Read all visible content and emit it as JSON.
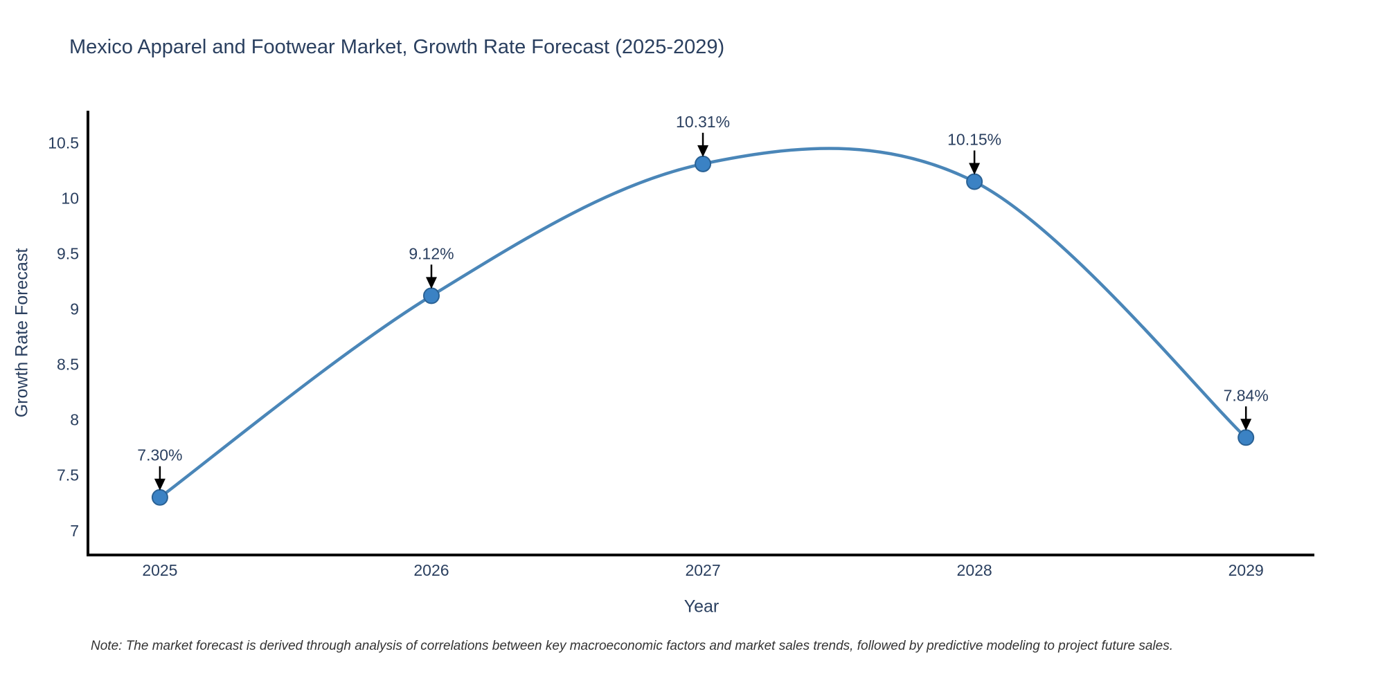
{
  "chart_data": {
    "type": "line",
    "line_shape": "spline",
    "title": "Mexico Apparel and Footwear Market, Growth Rate Forecast (2025-2029)",
    "xlabel": "Year",
    "ylabel": "Growth Rate Forecast",
    "categories": [
      "2025",
      "2026",
      "2027",
      "2028",
      "2029"
    ],
    "x": [
      2025,
      2026,
      2027,
      2028,
      2029
    ],
    "series": [
      {
        "name": "Growth Rate Forecast",
        "values": [
          7.3,
          9.12,
          10.31,
          10.15,
          7.84
        ]
      }
    ],
    "point_labels": [
      "7.30%",
      "9.12%",
      "10.31%",
      "10.15%",
      "7.84%"
    ],
    "ytick_labels": [
      "7",
      "7.5",
      "8",
      "8.5",
      "9",
      "9.5",
      "10",
      "10.5"
    ],
    "ytick_values": [
      7,
      7.5,
      8,
      8.5,
      9,
      9.5,
      10,
      10.5
    ],
    "ylim": [
      6.78,
      10.79
    ],
    "xlim": [
      2024.735,
      2029.252
    ],
    "grid": false,
    "legend_position": "none",
    "colors": {
      "line": "#4a86b8",
      "marker_fill": "#3b82c4",
      "marker_edge": "#2a6194",
      "axis": "#000000",
      "tick_text": "#2a3f5f",
      "annotation_text": "#2a3f5f",
      "arrow": "#000000",
      "note_text": "#333333",
      "title_text": "#2a3f5f"
    }
  },
  "note": "Note: The market forecast is derived through analysis of correlations between key macroeconomic factors and market sales trends, followed by predictive modeling to project future sales."
}
